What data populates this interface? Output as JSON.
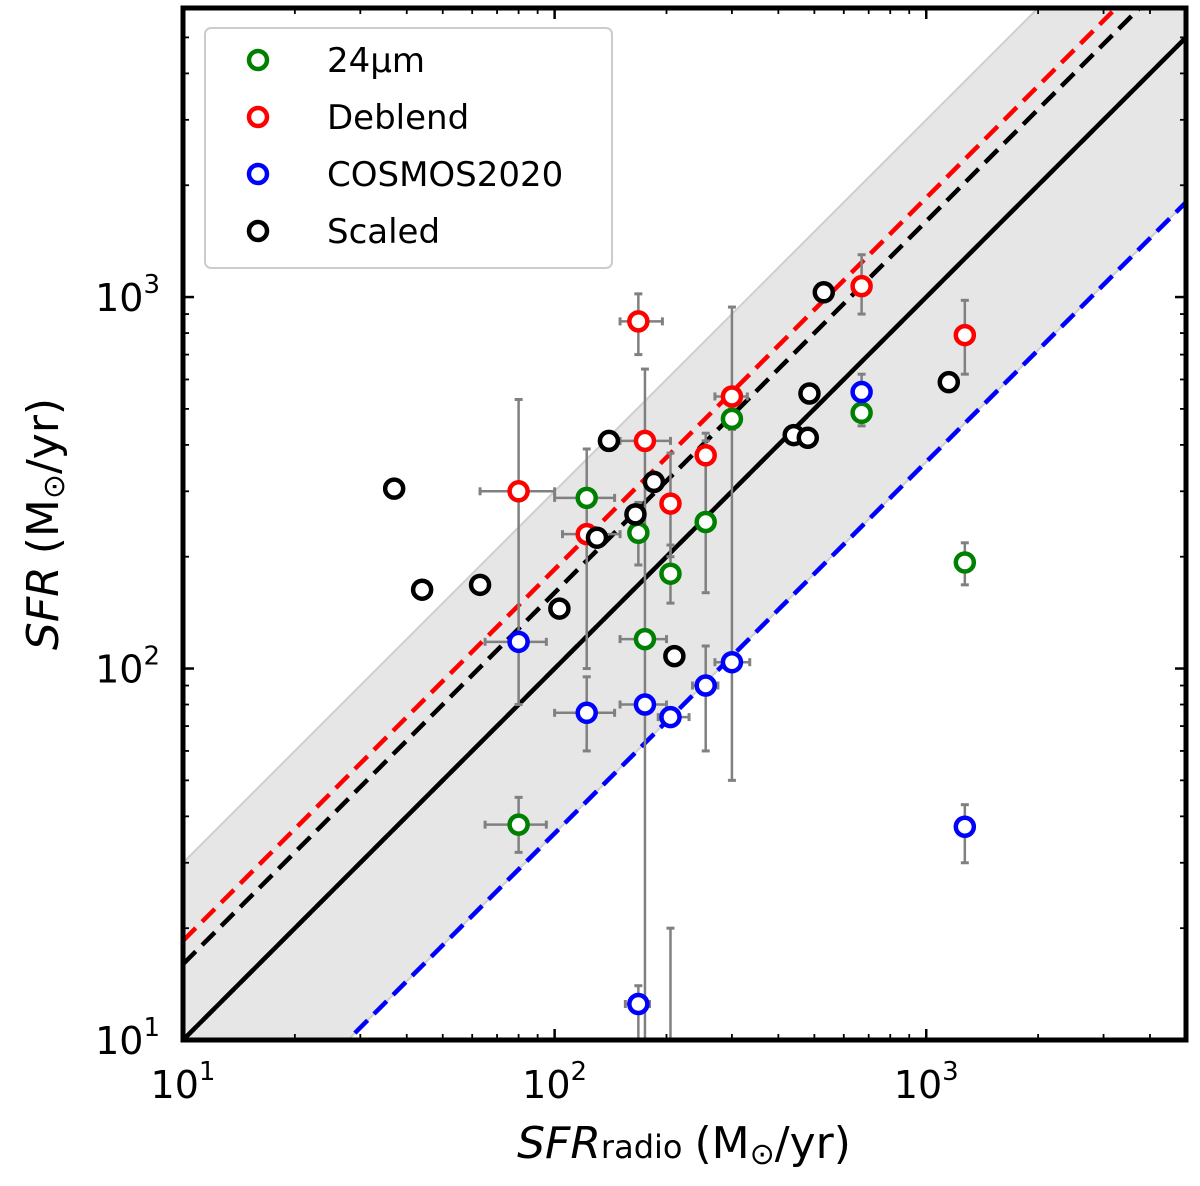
{
  "chart_data": {
    "type": "scatter",
    "xscale": "log",
    "yscale": "log",
    "xlim": [
      10,
      5000
    ],
    "ylim": [
      10,
      6000
    ],
    "xlabel": {
      "main": "SFR",
      "sub": "radio",
      "unit": "(M",
      "sun": "⊙",
      "unit_end": "/yr)"
    },
    "ylabel": {
      "main": "SFR",
      "unit": "(M",
      "sun": "⊙",
      "unit_end": "/yr)"
    },
    "x_ticks": [
      {
        "value": 10,
        "base": "10",
        "exp": "1"
      },
      {
        "value": 100,
        "base": "10",
        "exp": "2"
      },
      {
        "value": 1000,
        "base": "10",
        "exp": "3"
      }
    ],
    "y_ticks": [
      {
        "value": 10,
        "base": "10",
        "exp": "1"
      },
      {
        "value": 100,
        "base": "10",
        "exp": "2"
      },
      {
        "value": 1000,
        "base": "10",
        "exp": "3"
      }
    ],
    "band": {
      "lower_factor": 0.36,
      "upper_factor": 3.0,
      "color": "#e6e6e6"
    },
    "one_to_one_color": "#000000",
    "legend": {
      "position": "top-left"
    },
    "series": [
      {
        "name": "24µm",
        "color": "#008000",
        "fit_ratio": 1.0,
        "points": [
          {
            "x": 122,
            "y": 288,
            "xerr": [
              100,
              145
            ]
          },
          {
            "x": 168,
            "y": 232,
            "yerr": [
              190,
              280
            ]
          },
          {
            "x": 205,
            "y": 180,
            "yerr": [
              150,
              215
            ]
          },
          {
            "x": 255,
            "y": 248,
            "yerr": [
              160,
              410
            ]
          },
          {
            "x": 300,
            "y": 470,
            "yerr": [
              440,
              500
            ]
          },
          {
            "x": 175,
            "y": 120,
            "xerr": [
              150,
              200
            ]
          },
          {
            "x": 80,
            "y": 38,
            "xerr": [
              65,
              95
            ],
            "yerr": [
              32,
              45
            ]
          },
          {
            "x": 670,
            "y": 488,
            "yerr": [
              450,
              520
            ]
          },
          {
            "x": 1270,
            "y": 193,
            "yerr": [
              168,
              218
            ]
          }
        ]
      },
      {
        "name": "Deblend",
        "color": "#ff0000",
        "fit_ratio": 1.85,
        "points": [
          {
            "x": 80,
            "y": 300,
            "xerr": [
              63,
              100
            ],
            "yerr": [
              80,
              530
            ]
          },
          {
            "x": 122,
            "y": 230,
            "xerr": [
              105,
              150
            ],
            "yerr": [
              100,
              390
            ]
          },
          {
            "x": 175,
            "y": 410,
            "xerr": [
              150,
              205
            ]
          },
          {
            "x": 205,
            "y": 278,
            "yerr": [
              200,
              380
            ]
          },
          {
            "x": 168,
            "y": 860,
            "xerr": [
              150,
              195
            ],
            "yerr": [
              700,
              1020
            ]
          },
          {
            "x": 255,
            "y": 375,
            "yerr": [
              260,
              430
            ]
          },
          {
            "x": 300,
            "y": 540,
            "xerr": [
              270,
              330
            ]
          },
          {
            "x": 670,
            "y": 1070,
            "yerr": [
              900,
              1300
            ]
          },
          {
            "x": 1270,
            "y": 790,
            "yerr": [
              620,
              980
            ]
          }
        ]
      },
      {
        "name": "COSMOS2020",
        "color": "#0000ff",
        "fit_ratio": 0.36,
        "points": [
          {
            "x": 80,
            "y": 118,
            "xerr": [
              65,
              95
            ]
          },
          {
            "x": 122,
            "y": 76,
            "xerr": [
              100,
              145
            ],
            "yerr": [
              60,
              95
            ]
          },
          {
            "x": 175,
            "y": 80,
            "xerr": [
              150,
              200
            ],
            "yerr": [
              10,
              640
            ]
          },
          {
            "x": 205,
            "y": 74,
            "xerr": [
              190,
              230
            ],
            "yerr": [
              10,
              20
            ]
          },
          {
            "x": 255,
            "y": 90,
            "xerr": [
              235,
              275
            ],
            "yerr": [
              60,
              115
            ]
          },
          {
            "x": 300,
            "y": 104,
            "xerr": [
              270,
              335
            ],
            "yerr": [
              50,
              940
            ]
          },
          {
            "x": 168,
            "y": 12.5,
            "xerr": [
              155,
              180
            ],
            "yerr": [
              10,
              14
            ]
          },
          {
            "x": 670,
            "y": 555,
            "yerr": [
              500,
              620
            ]
          },
          {
            "x": 1270,
            "y": 37.5,
            "yerr": [
              30,
              43
            ]
          }
        ]
      },
      {
        "name": "Scaled",
        "color": "#000000",
        "fit_ratio": 1.6,
        "points": [
          {
            "x": 37,
            "y": 305
          },
          {
            "x": 44,
            "y": 163
          },
          {
            "x": 63,
            "y": 168
          },
          {
            "x": 103,
            "y": 145
          },
          {
            "x": 130,
            "y": 225
          },
          {
            "x": 140,
            "y": 410
          },
          {
            "x": 165,
            "y": 260
          },
          {
            "x": 185,
            "y": 318
          },
          {
            "x": 210,
            "y": 108
          },
          {
            "x": 440,
            "y": 425
          },
          {
            "x": 480,
            "y": 418
          },
          {
            "x": 485,
            "y": 550
          },
          {
            "x": 530,
            "y": 1030
          },
          {
            "x": 1150,
            "y": 590
          }
        ]
      }
    ]
  }
}
